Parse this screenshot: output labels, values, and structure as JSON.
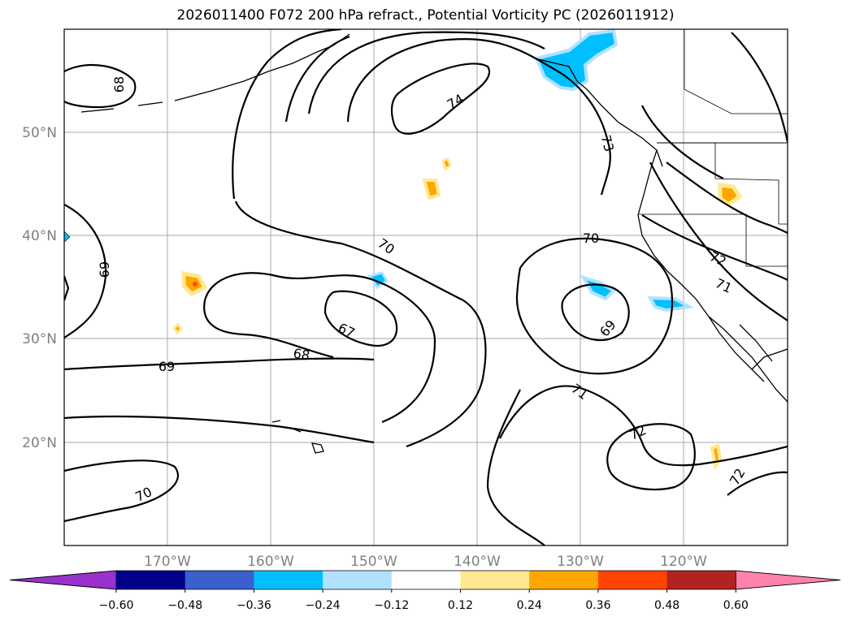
{
  "title": "2026011400 F072 200 hPa refract., Potential Vorticity PC (2026011912)",
  "latitude_labels": [
    "50°N",
    "40°N",
    "30°N",
    "20°N"
  ],
  "longitude_labels": [
    "170°W",
    "160°W",
    "150°W",
    "140°W",
    "130°W",
    "120°W"
  ],
  "contour_labels": [
    "68",
    "69",
    "74",
    "73",
    "70",
    "70",
    "67",
    "68",
    "69",
    "71",
    "72",
    "71",
    "69",
    "72",
    "70",
    "72"
  ],
  "colorbar": {
    "ticks": [
      "−0.60",
      "−0.48",
      "−0.36",
      "−0.24",
      "−0.12",
      "0.12",
      "0.24",
      "0.36",
      "0.48",
      "0.60"
    ],
    "colors": [
      "#9932cc",
      "#00008b",
      "#3b5fcd",
      "#00bfff",
      "#b0e2ff",
      "#ffffff",
      "#ffe88f",
      "#ffa500",
      "#ff4500",
      "#b22222",
      "#ff82ab"
    ]
  },
  "colors": {
    "grid": "#a9a9a9",
    "contour": "#000000",
    "coast": "#000000",
    "pv_neg": "#00bfff",
    "pv_neg_light": "#b0e2ff",
    "pv_pos": "#ffa500",
    "pv_pos_light": "#ffe88f",
    "pv_pos_strong": "#ff4500"
  }
}
